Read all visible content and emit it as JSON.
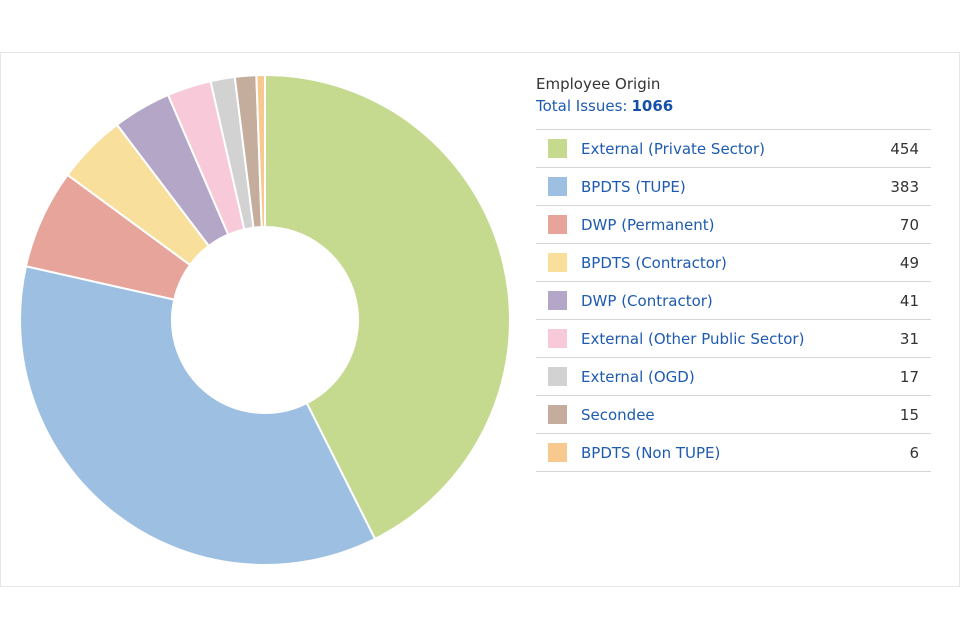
{
  "chart_data": {
    "type": "pie",
    "title": "Employee Origin",
    "total_label": "Total Issues:",
    "total_value": "1066",
    "categories": [
      "External (Private Sector)",
      "BPDTS (TUPE)",
      "DWP (Permanent)",
      "BPDTS (Contractor)",
      "DWP (Contractor)",
      "External (Other Public Sector)",
      "External (OGD)",
      "Secondee",
      "BPDTS (Non TUPE)"
    ],
    "values": [
      454,
      383,
      70,
      49,
      41,
      31,
      17,
      15,
      6
    ],
    "colors": [
      "#c5d98f",
      "#9dbfe2",
      "#e6a49a",
      "#f8df9c",
      "#b3a6c7",
      "#f8c9d9",
      "#d2d2d2",
      "#c4ad9d",
      "#f8c98f"
    ],
    "donut": true
  }
}
